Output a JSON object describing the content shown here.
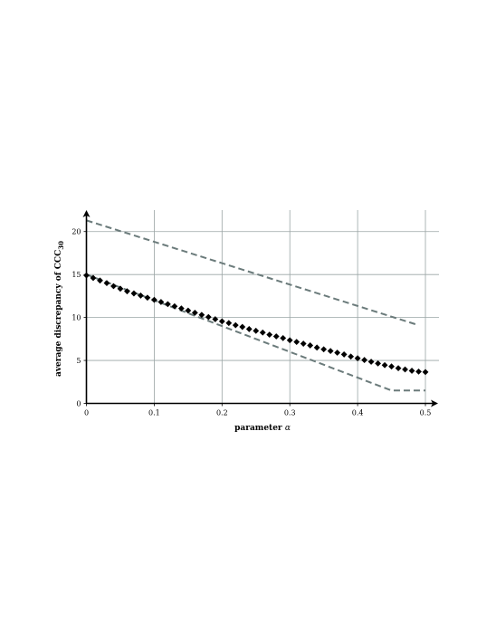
{
  "chart_data": {
    "type": "line",
    "title": "",
    "xlabel_parts": {
      "text": "parameter ",
      "symbol": "α"
    },
    "ylabel_parts": {
      "text": "average discrepancy of CCC",
      "sub": "30"
    },
    "xlim": [
      0,
      0.52
    ],
    "ylim": [
      0,
      22.5
    ],
    "xticks": [
      0,
      0.1,
      0.2,
      0.3,
      0.4,
      0.5
    ],
    "xtick_labels": [
      "0",
      "0.1",
      "0.2",
      "0.3",
      "0.4",
      "0.5"
    ],
    "yticks": [
      0,
      5,
      10,
      15,
      20
    ],
    "ytick_labels": [
      "0",
      "5",
      "10",
      "15",
      "20"
    ],
    "grid": true,
    "legend": "none",
    "series": [
      {
        "style": "diamond-markers",
        "color": "#000000",
        "x": [
          0,
          0.01,
          0.02,
          0.03,
          0.04,
          0.05,
          0.06,
          0.07,
          0.08,
          0.09,
          0.1,
          0.11,
          0.12,
          0.13,
          0.14,
          0.15,
          0.16,
          0.17,
          0.18,
          0.19,
          0.2,
          0.21,
          0.22,
          0.23,
          0.24,
          0.25,
          0.26,
          0.27,
          0.28,
          0.29,
          0.3,
          0.31,
          0.32,
          0.33,
          0.34,
          0.35,
          0.36,
          0.37,
          0.38,
          0.39,
          0.4,
          0.41,
          0.42,
          0.43,
          0.44,
          0.45,
          0.46,
          0.47,
          0.48,
          0.49,
          0.5
        ],
        "y": [
          14.9,
          14.6,
          14.3,
          14.0,
          13.65,
          13.35,
          13.05,
          12.8,
          12.55,
          12.3,
          12.05,
          11.8,
          11.55,
          11.3,
          11.05,
          10.8,
          10.55,
          10.3,
          10.05,
          9.8,
          9.55,
          9.35,
          9.1,
          8.9,
          8.65,
          8.45,
          8.25,
          8.0,
          7.8,
          7.6,
          7.35,
          7.15,
          6.95,
          6.75,
          6.5,
          6.3,
          6.1,
          5.9,
          5.7,
          5.45,
          5.25,
          5.05,
          4.85,
          4.65,
          4.45,
          4.3,
          4.1,
          3.95,
          3.8,
          3.7,
          3.65
        ]
      },
      {
        "style": "dashed",
        "color": "#6b7b7b",
        "x": [
          0,
          0.49
        ],
        "y": [
          21.3,
          9.1
        ]
      },
      {
        "style": "dashed",
        "color": "#6b7b7b",
        "x": [
          0,
          0.45,
          0.5
        ],
        "y": [
          15.0,
          1.5,
          1.5
        ]
      }
    ]
  }
}
